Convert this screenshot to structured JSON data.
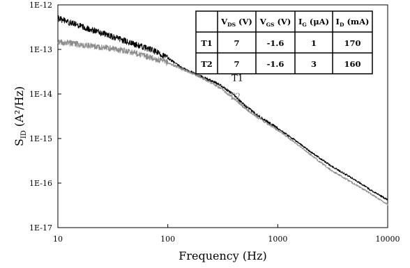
{
  "chart_data": {
    "type": "line",
    "title": "",
    "xlabel": "Frequency (Hz)",
    "ylabel": "S",
    "ylabel_subscript": "ID",
    "ylabel_units": "(A²/Hz)",
    "x_scale": "log",
    "y_scale": "log",
    "xlim": [
      10,
      10000
    ],
    "ylim": [
      1e-17,
      1e-12
    ],
    "x_ticks": [
      10,
      100,
      1000,
      10000
    ],
    "x_tick_labels": [
      "10",
      "100",
      "1000",
      "10000"
    ],
    "y_ticks": [
      1e-17,
      1e-16,
      1e-15,
      1e-14,
      1e-13,
      1e-12
    ],
    "y_tick_labels": [
      "1E-17",
      "1E-16",
      "1E-15",
      "1E-14",
      "1E-13",
      "1E-12"
    ],
    "grid": false,
    "series": [
      {
        "name": "T1",
        "color": "#000000",
        "x": [
          10,
          15,
          20,
          30,
          50,
          70,
          100,
          130,
          200,
          300,
          400,
          500,
          700,
          1000,
          1500,
          2000,
          3000,
          5000,
          7000,
          10000
        ],
        "y": [
          5e-13,
          3.5e-13,
          2.8e-13,
          2e-13,
          1.3e-13,
          1e-13,
          6.5e-14,
          4e-14,
          2.5e-14,
          1.6e-14,
          9.5e-15,
          5.5e-15,
          3e-15,
          1.7e-15,
          8.5e-16,
          5e-16,
          2.5e-16,
          1.2e-16,
          7e-17,
          4.2e-17
        ]
      },
      {
        "name": "T2",
        "color": "#8c8c8c",
        "x": [
          10,
          15,
          20,
          30,
          50,
          70,
          100,
          130,
          200,
          300,
          400,
          500,
          700,
          1000,
          1500,
          2000,
          3000,
          5000,
          7000,
          10000
        ],
        "y": [
          1.5e-13,
          1.3e-13,
          1.2e-13,
          1.05e-13,
          8.5e-14,
          6.5e-14,
          5e-14,
          3.8e-14,
          2.4e-14,
          1.35e-14,
          8e-15,
          4.8e-15,
          2.7e-15,
          1.55e-15,
          7.5e-16,
          4.3e-16,
          2e-16,
          9.5e-17,
          5.8e-17,
          3.3e-17
        ]
      }
    ],
    "series_labels": [
      {
        "text": "T1",
        "x": 380,
        "y": 1.95e-14,
        "color": "#000000"
      },
      {
        "text": "T2",
        "x": 360,
        "y": 7.5e-15,
        "color": "#8c8c8c"
      }
    ],
    "table": {
      "headers": [
        {
          "main": "",
          "sub": "",
          "unit": ""
        },
        {
          "main": "V",
          "sub": "DS",
          "unit": " (V)"
        },
        {
          "main": "V",
          "sub": "GS",
          "unit": " (V)"
        },
        {
          "main": "I",
          "sub": "G",
          "unit": " (μA)"
        },
        {
          "main": "I",
          "sub": "D",
          "unit": " (mA)"
        }
      ],
      "rows": [
        [
          "T1",
          "7",
          "-1.6",
          "1",
          "170"
        ],
        [
          "T2",
          "7",
          "-1.6",
          "3",
          "160"
        ]
      ]
    }
  }
}
